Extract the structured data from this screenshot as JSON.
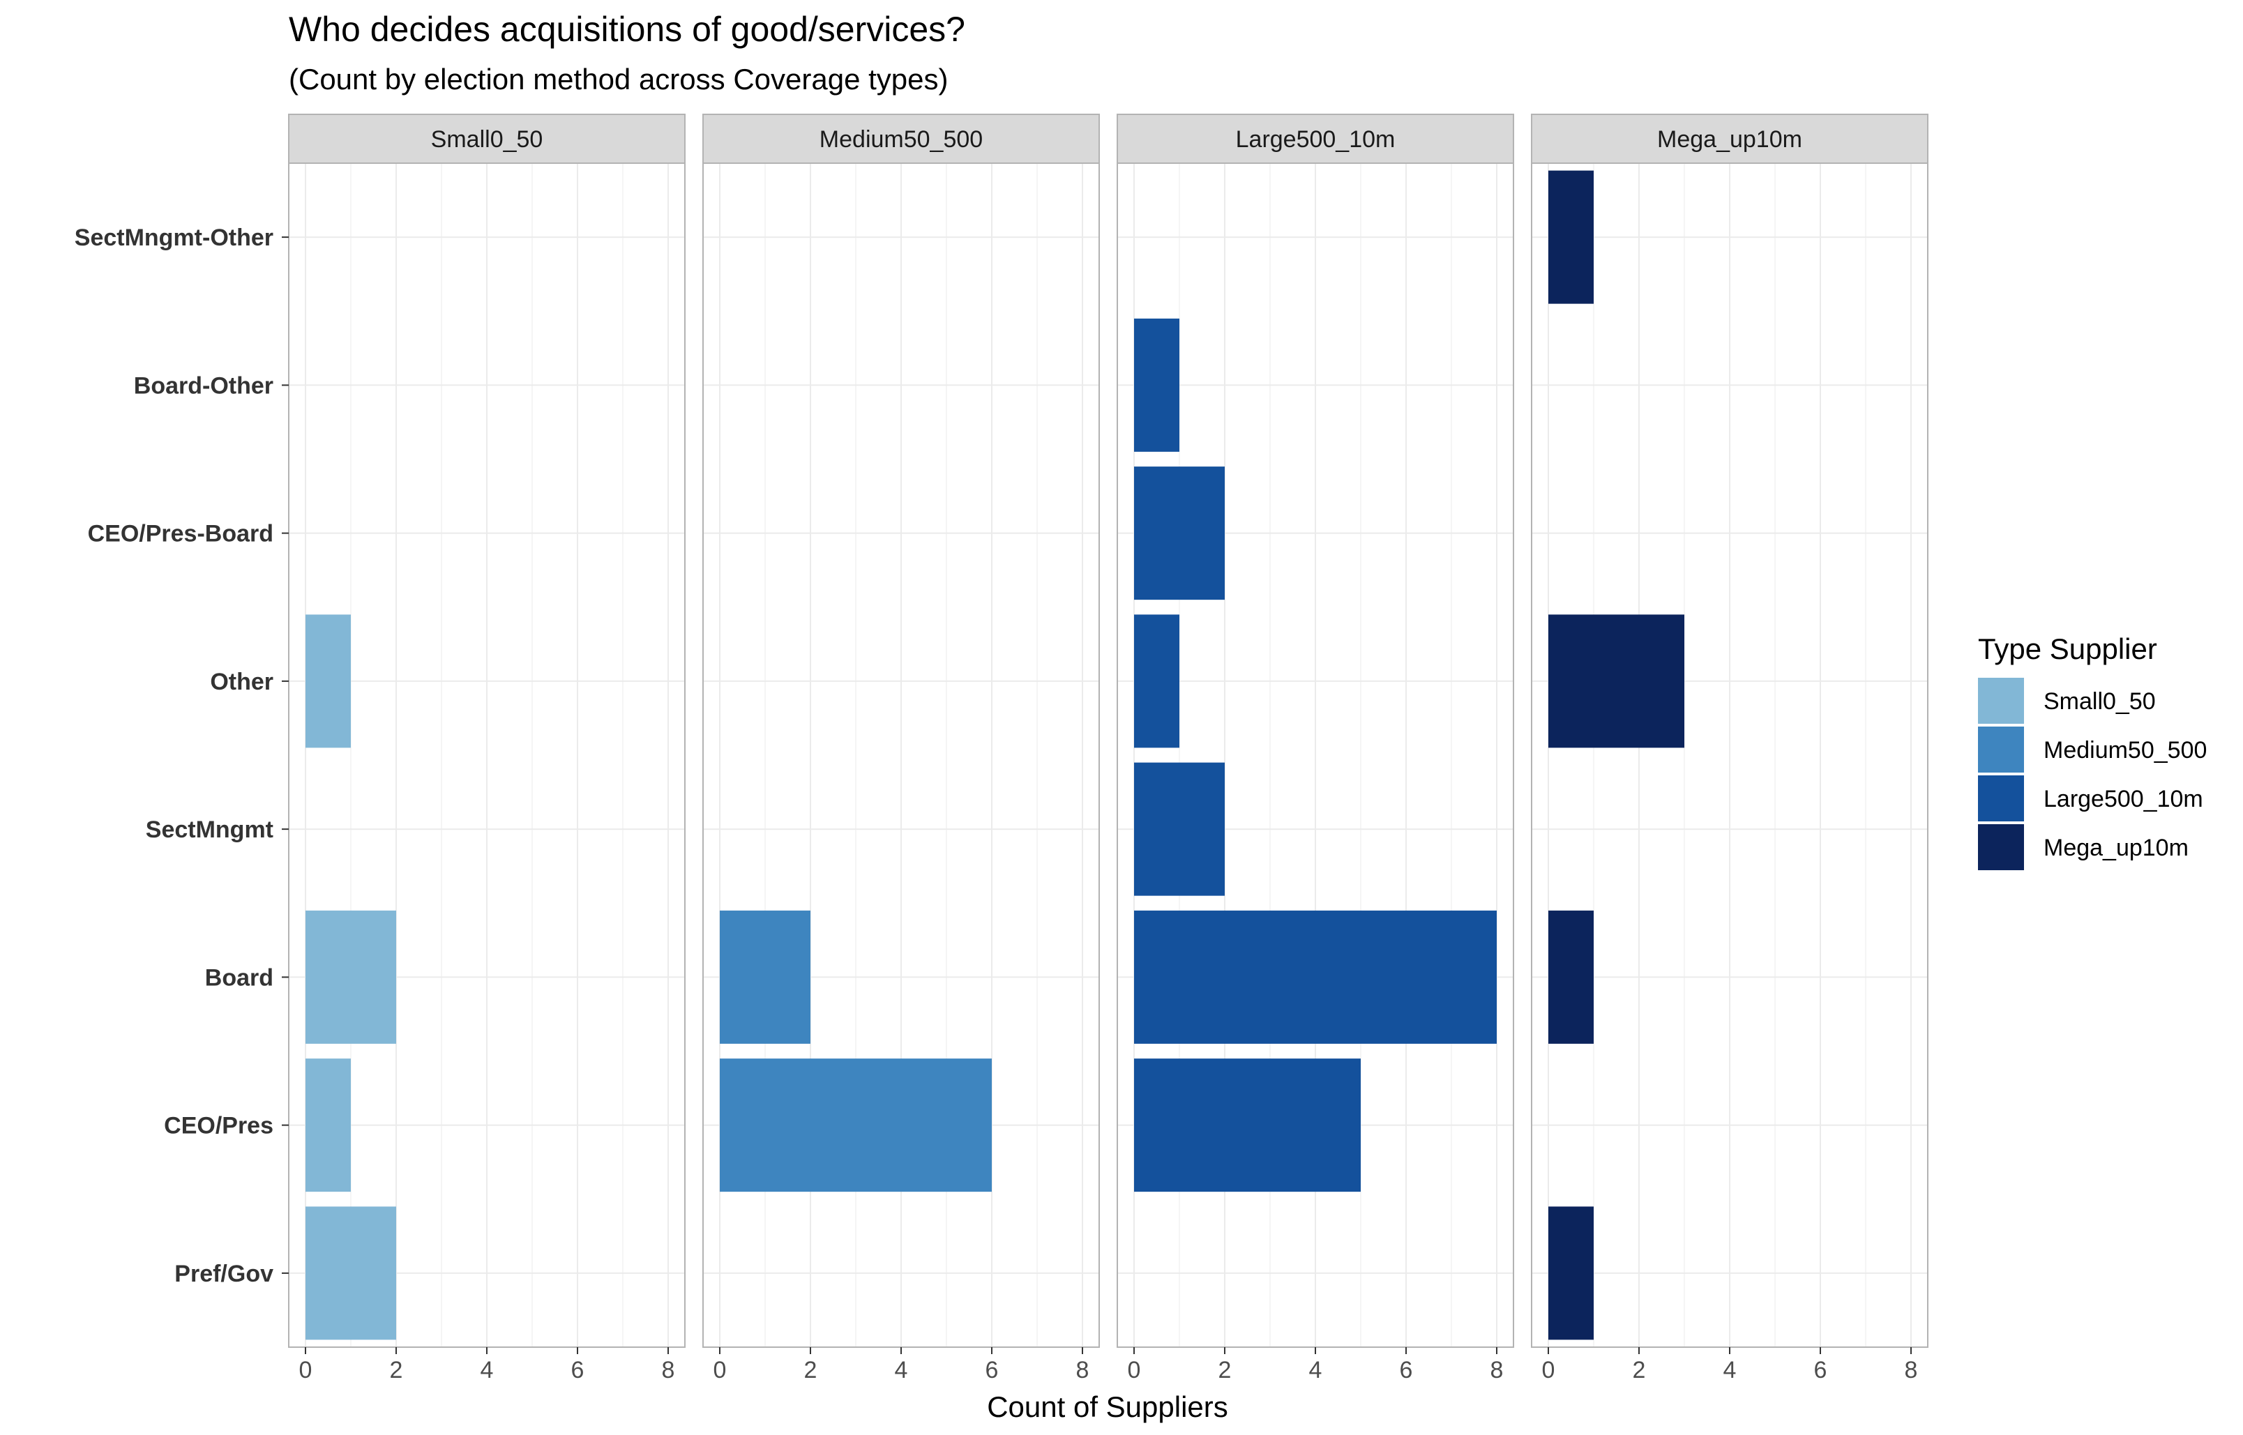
{
  "chart_data": {
    "type": "bar",
    "orientation": "horizontal",
    "title": "Who decides acquisitions of good/services?",
    "subtitle": "(Count by election method across Coverage types)",
    "xlabel": "Count of Suppliers",
    "ylabel": "",
    "xlim": [
      0,
      8
    ],
    "xticks": [
      "0",
      "2",
      "4",
      "6",
      "8"
    ],
    "grid": true,
    "categories": [
      "SectMngmt-Other",
      "Board-Other",
      "CEO/Pres-Board",
      "Other",
      "SectMngmt",
      "Board",
      "CEO/Pres",
      "Pref/Gov"
    ],
    "legend": {
      "title": "Type Supplier",
      "placement": "right",
      "entries": [
        "Small0_50",
        "Medium50_500",
        "Large500_10m",
        "Mega_up10m"
      ]
    },
    "facets": [
      {
        "label": "Small0_50",
        "color": "#82b7d6",
        "values": [
          0,
          0,
          0,
          1,
          0,
          2,
          1,
          2
        ]
      },
      {
        "label": "Medium50_500",
        "color": "#3e85bf",
        "values": [
          0,
          0,
          0,
          0,
          0,
          2,
          6,
          0
        ]
      },
      {
        "label": "Large500_10m",
        "color": "#14519c",
        "values": [
          0,
          1,
          2,
          1,
          2,
          8,
          5,
          0
        ]
      },
      {
        "label": "Mega_up10m",
        "color": "#0c245c",
        "values": [
          1,
          0,
          0,
          3,
          0,
          1,
          0,
          1
        ]
      }
    ]
  }
}
